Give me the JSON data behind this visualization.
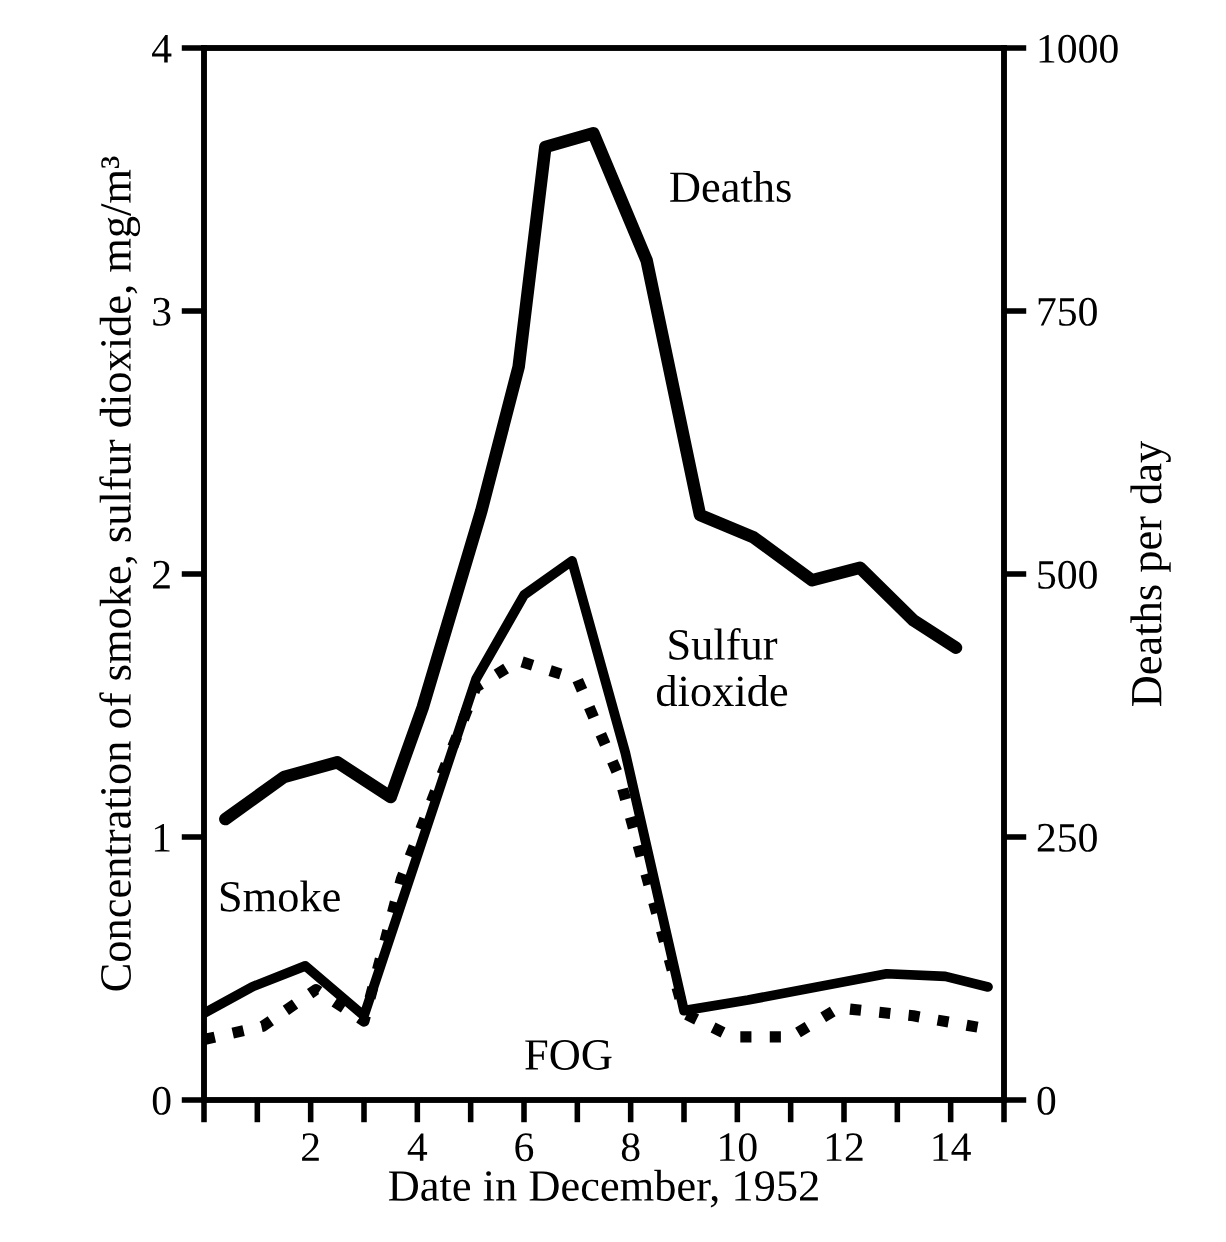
{
  "chart_data": {
    "type": "line",
    "xlabel": "Date in December, 1952",
    "ylabel": "Concentration of smoke, sulfur dioxide, mg/m³",
    "y2label": "Deaths per day",
    "xlim": [
      0,
      15
    ],
    "xticks": [
      {
        "value": 0,
        "label": null
      },
      {
        "value": 1,
        "label": null
      },
      2,
      {
        "value": 3,
        "label": null
      },
      4,
      {
        "value": 5,
        "label": null
      },
      6,
      {
        "value": 7,
        "label": null
      },
      8,
      {
        "value": 9,
        "label": null
      },
      10,
      {
        "value": 11,
        "label": null
      },
      12,
      {
        "value": 13,
        "label": null
      },
      14,
      {
        "value": 15,
        "label": null
      }
    ],
    "ylim": [
      0,
      4
    ],
    "yticks": [
      0,
      1,
      2,
      3,
      4
    ],
    "y2lim": [
      0,
      1000
    ],
    "y2ticks": [
      0,
      250,
      500,
      750,
      1000
    ],
    "grid": false,
    "legend": false,
    "marker": "none",
    "annotations": [
      "FOG"
    ],
    "series": [
      {
        "name": "Deaths",
        "color": "#000000",
        "axis": "y2",
        "line_style": "solid",
        "x": [
          0.4,
          1.5,
          2.5,
          3.5,
          4.1,
          5.2,
          5.9,
          6.4,
          7.3,
          8.3,
          9.3,
          10.3,
          11.4,
          12.3,
          13.3,
          14.1
        ],
        "values": [
          267,
          307,
          321,
          288,
          373,
          560,
          697,
          906,
          919,
          798,
          556,
          535,
          494,
          506,
          456,
          430
        ]
      },
      {
        "name": "Sulfur dioxide",
        "color": "#000000",
        "line_style": "solid",
        "x": [
          0,
          0.9,
          1.9,
          3.0,
          5.1,
          6.0,
          6.9,
          7.9,
          9.0,
          10.2,
          12.8,
          13.9,
          14.7
        ],
        "values": [
          0.33,
          0.43,
          0.51,
          0.32,
          1.6,
          1.92,
          2.05,
          1.32,
          0.34,
          0.38,
          0.48,
          0.47,
          0.43
        ]
      },
      {
        "name": "Smoke",
        "color": "#000000",
        "line_style": "dotted",
        "x": [
          0,
          1.1,
          2.1,
          3.0,
          3.7,
          5.1,
          5.9,
          7.0,
          7.8,
          9.0,
          9.9,
          11.0,
          11.9,
          13.3,
          14.7
        ],
        "values": [
          0.23,
          0.28,
          0.42,
          0.3,
          0.84,
          1.57,
          1.67,
          1.6,
          1.22,
          0.33,
          0.24,
          0.24,
          0.35,
          0.32,
          0.27
        ]
      }
    ]
  }
}
